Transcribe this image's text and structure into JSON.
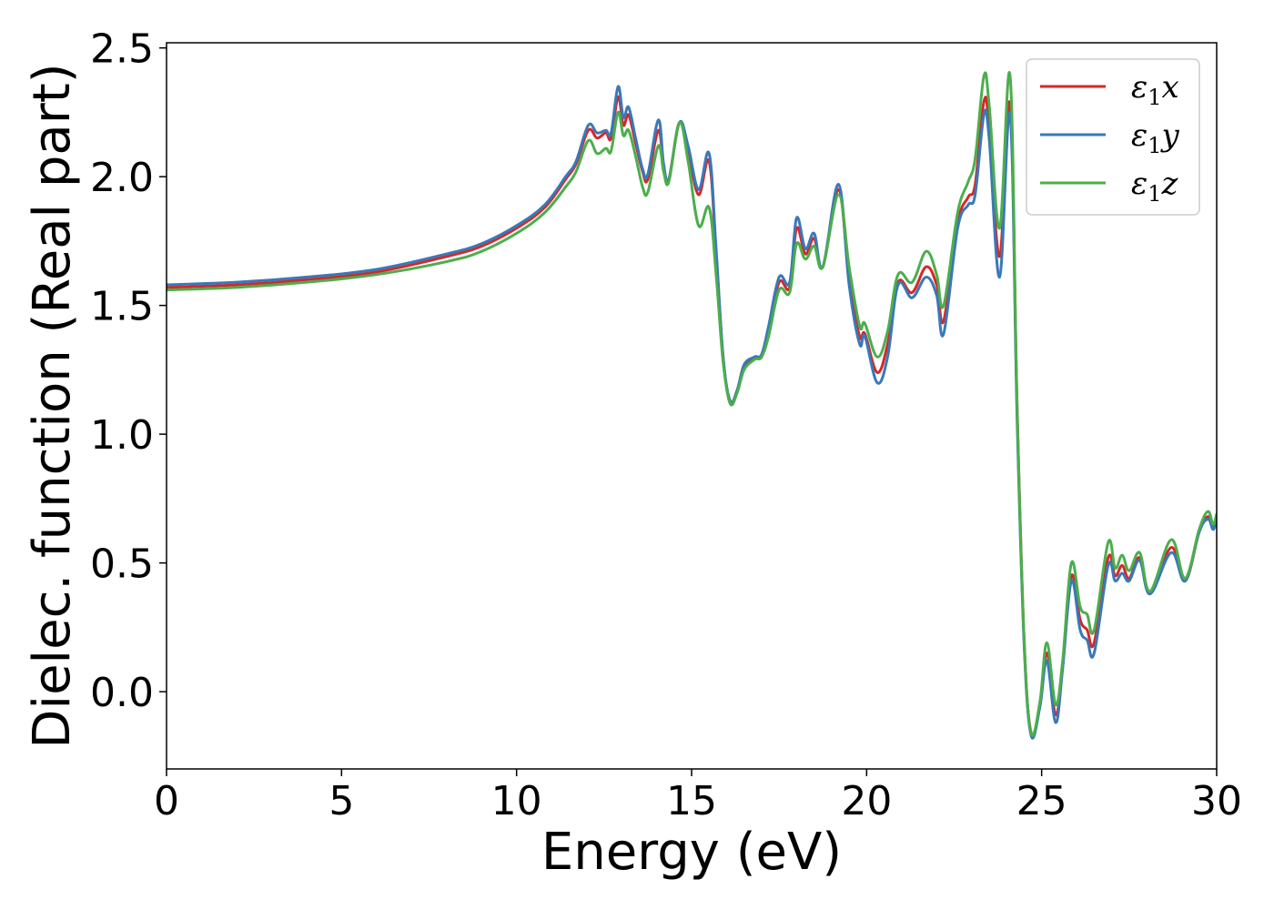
{
  "chart_data": {
    "type": "line",
    "title": "",
    "xlabel": "Energy (eV)",
    "ylabel": "Dielec. function (Real part)",
    "xlim": [
      0,
      30
    ],
    "ylim": [
      -0.3,
      2.52
    ],
    "xticks": [
      0,
      5,
      10,
      15,
      20,
      25,
      30
    ],
    "xtick_labels": [
      "0",
      "5",
      "10",
      "15",
      "20",
      "25",
      "30"
    ],
    "yticks": [
      0.0,
      0.5,
      1.0,
      1.5,
      2.0,
      2.5
    ],
    "ytick_labels": [
      "0.0",
      "0.5",
      "1.0",
      "1.5",
      "2.0",
      "2.5"
    ],
    "grid": false,
    "legend_position": "top-right",
    "series": [
      {
        "name": "ε1x",
        "legend_symbol": "ε",
        "legend_subscript": "1",
        "legend_suffix": "x",
        "color": "#d62728",
        "points": [
          [
            0,
            1.57
          ],
          [
            2,
            1.58
          ],
          [
            4,
            1.6
          ],
          [
            6,
            1.63
          ],
          [
            8,
            1.69
          ],
          [
            9,
            1.73
          ],
          [
            10,
            1.8
          ],
          [
            10.8,
            1.88
          ],
          [
            11.4,
            1.99
          ],
          [
            11.7,
            2.05
          ],
          [
            12.05,
            2.18
          ],
          [
            12.3,
            2.15
          ],
          [
            12.55,
            2.17
          ],
          [
            12.7,
            2.15
          ],
          [
            12.9,
            2.31
          ],
          [
            13.05,
            2.2
          ],
          [
            13.2,
            2.24
          ],
          [
            13.4,
            2.13
          ],
          [
            13.6,
            2.02
          ],
          [
            13.75,
            1.99
          ],
          [
            14.05,
            2.18
          ],
          [
            14.2,
            2.04
          ],
          [
            14.35,
            1.99
          ],
          [
            14.65,
            2.21
          ],
          [
            14.9,
            2.1
          ],
          [
            15.2,
            1.93
          ],
          [
            15.5,
            2.06
          ],
          [
            15.7,
            1.7
          ],
          [
            15.9,
            1.3
          ],
          [
            16.1,
            1.12
          ],
          [
            16.3,
            1.17
          ],
          [
            16.5,
            1.26
          ],
          [
            16.8,
            1.3
          ],
          [
            17.0,
            1.3
          ],
          [
            17.2,
            1.4
          ],
          [
            17.5,
            1.59
          ],
          [
            17.8,
            1.57
          ],
          [
            18.0,
            1.8
          ],
          [
            18.25,
            1.7
          ],
          [
            18.5,
            1.76
          ],
          [
            18.75,
            1.65
          ],
          [
            19.2,
            1.95
          ],
          [
            19.5,
            1.6
          ],
          [
            19.8,
            1.38
          ],
          [
            19.95,
            1.39
          ],
          [
            20.3,
            1.24
          ],
          [
            20.6,
            1.35
          ],
          [
            20.9,
            1.59
          ],
          [
            21.3,
            1.55
          ],
          [
            21.7,
            1.65
          ],
          [
            22.0,
            1.58
          ],
          [
            22.2,
            1.44
          ],
          [
            22.6,
            1.82
          ],
          [
            22.9,
            1.92
          ],
          [
            23.1,
            1.97
          ],
          [
            23.35,
            2.29
          ],
          [
            23.5,
            2.2
          ],
          [
            23.8,
            1.69
          ],
          [
            24.1,
            2.28
          ],
          [
            24.3,
            1.1
          ],
          [
            24.5,
            0.2
          ],
          [
            24.7,
            -0.16
          ],
          [
            24.95,
            -0.05
          ],
          [
            25.15,
            0.15
          ],
          [
            25.4,
            -0.09
          ],
          [
            25.6,
            0.1
          ],
          [
            25.85,
            0.45
          ],
          [
            26.1,
            0.28
          ],
          [
            26.3,
            0.24
          ],
          [
            26.5,
            0.19
          ],
          [
            26.9,
            0.52
          ],
          [
            27.1,
            0.45
          ],
          [
            27.3,
            0.49
          ],
          [
            27.5,
            0.44
          ],
          [
            27.8,
            0.52
          ],
          [
            28.1,
            0.38
          ],
          [
            28.7,
            0.56
          ],
          [
            29.1,
            0.43
          ],
          [
            29.5,
            0.62
          ],
          [
            29.75,
            0.68
          ],
          [
            29.9,
            0.64
          ],
          [
            30,
            0.68
          ]
        ]
      },
      {
        "name": "ε1y",
        "legend_symbol": "ε",
        "legend_subscript": "1",
        "legend_suffix": "y",
        "color": "#3a78b8",
        "points": [
          [
            0,
            1.58
          ],
          [
            2,
            1.59
          ],
          [
            4,
            1.61
          ],
          [
            6,
            1.64
          ],
          [
            8,
            1.7
          ],
          [
            9,
            1.74
          ],
          [
            10,
            1.81
          ],
          [
            10.8,
            1.89
          ],
          [
            11.4,
            2.0
          ],
          [
            11.7,
            2.06
          ],
          [
            12.05,
            2.2
          ],
          [
            12.3,
            2.17
          ],
          [
            12.55,
            2.18
          ],
          [
            12.7,
            2.17
          ],
          [
            12.9,
            2.35
          ],
          [
            13.05,
            2.23
          ],
          [
            13.2,
            2.27
          ],
          [
            13.4,
            2.15
          ],
          [
            13.6,
            2.03
          ],
          [
            13.75,
            2.01
          ],
          [
            14.05,
            2.22
          ],
          [
            14.2,
            2.05
          ],
          [
            14.35,
            1.99
          ],
          [
            14.65,
            2.21
          ],
          [
            14.9,
            2.12
          ],
          [
            15.2,
            1.95
          ],
          [
            15.5,
            2.09
          ],
          [
            15.7,
            1.72
          ],
          [
            15.9,
            1.3
          ],
          [
            16.1,
            1.13
          ],
          [
            16.3,
            1.17
          ],
          [
            16.5,
            1.27
          ],
          [
            16.8,
            1.3
          ],
          [
            17.0,
            1.31
          ],
          [
            17.2,
            1.42
          ],
          [
            17.5,
            1.61
          ],
          [
            17.8,
            1.59
          ],
          [
            18.0,
            1.84
          ],
          [
            18.25,
            1.72
          ],
          [
            18.5,
            1.78
          ],
          [
            18.75,
            1.65
          ],
          [
            19.2,
            1.97
          ],
          [
            19.5,
            1.58
          ],
          [
            19.8,
            1.35
          ],
          [
            19.95,
            1.38
          ],
          [
            20.3,
            1.2
          ],
          [
            20.6,
            1.3
          ],
          [
            20.9,
            1.58
          ],
          [
            21.3,
            1.53
          ],
          [
            21.7,
            1.61
          ],
          [
            22.0,
            1.54
          ],
          [
            22.2,
            1.39
          ],
          [
            22.6,
            1.8
          ],
          [
            22.9,
            1.89
          ],
          [
            23.1,
            1.93
          ],
          [
            23.35,
            2.24
          ],
          [
            23.5,
            2.15
          ],
          [
            23.8,
            1.61
          ],
          [
            24.1,
            2.24
          ],
          [
            24.3,
            1.05
          ],
          [
            24.5,
            0.18
          ],
          [
            24.7,
            -0.17
          ],
          [
            24.95,
            -0.06
          ],
          [
            25.15,
            0.12
          ],
          [
            25.4,
            -0.12
          ],
          [
            25.6,
            0.09
          ],
          [
            25.85,
            0.43
          ],
          [
            26.1,
            0.24
          ],
          [
            26.3,
            0.2
          ],
          [
            26.5,
            0.15
          ],
          [
            26.9,
            0.49
          ],
          [
            27.1,
            0.43
          ],
          [
            27.3,
            0.46
          ],
          [
            27.5,
            0.43
          ],
          [
            27.8,
            0.51
          ],
          [
            28.1,
            0.38
          ],
          [
            28.7,
            0.54
          ],
          [
            29.1,
            0.43
          ],
          [
            29.5,
            0.62
          ],
          [
            29.75,
            0.67
          ],
          [
            29.9,
            0.63
          ],
          [
            30,
            0.67
          ]
        ]
      },
      {
        "name": "ε1z",
        "legend_symbol": "ε",
        "legend_subscript": "1",
        "legend_suffix": "z",
        "color": "#4cae4c",
        "points": [
          [
            0,
            1.56
          ],
          [
            2,
            1.57
          ],
          [
            4,
            1.59
          ],
          [
            6,
            1.62
          ],
          [
            8,
            1.67
          ],
          [
            9,
            1.71
          ],
          [
            10,
            1.78
          ],
          [
            10.8,
            1.86
          ],
          [
            11.4,
            1.96
          ],
          [
            11.7,
            2.02
          ],
          [
            12.05,
            2.14
          ],
          [
            12.3,
            2.09
          ],
          [
            12.55,
            2.11
          ],
          [
            12.7,
            2.1
          ],
          [
            12.9,
            2.25
          ],
          [
            13.05,
            2.16
          ],
          [
            13.2,
            2.18
          ],
          [
            13.4,
            2.08
          ],
          [
            13.6,
            1.96
          ],
          [
            13.75,
            1.94
          ],
          [
            14.05,
            2.12
          ],
          [
            14.2,
            2.02
          ],
          [
            14.35,
            1.98
          ],
          [
            14.65,
            2.21
          ],
          [
            14.9,
            2.06
          ],
          [
            15.2,
            1.81
          ],
          [
            15.5,
            1.88
          ],
          [
            15.7,
            1.62
          ],
          [
            15.9,
            1.28
          ],
          [
            16.1,
            1.12
          ],
          [
            16.3,
            1.16
          ],
          [
            16.5,
            1.25
          ],
          [
            16.8,
            1.29
          ],
          [
            17.0,
            1.3
          ],
          [
            17.2,
            1.38
          ],
          [
            17.5,
            1.56
          ],
          [
            17.8,
            1.55
          ],
          [
            18.0,
            1.74
          ],
          [
            18.25,
            1.68
          ],
          [
            18.5,
            1.73
          ],
          [
            18.75,
            1.65
          ],
          [
            19.2,
            1.93
          ],
          [
            19.5,
            1.65
          ],
          [
            19.8,
            1.42
          ],
          [
            19.95,
            1.43
          ],
          [
            20.3,
            1.3
          ],
          [
            20.6,
            1.4
          ],
          [
            20.9,
            1.62
          ],
          [
            21.3,
            1.59
          ],
          [
            21.7,
            1.71
          ],
          [
            22.0,
            1.62
          ],
          [
            22.2,
            1.5
          ],
          [
            22.6,
            1.86
          ],
          [
            22.9,
            1.98
          ],
          [
            23.1,
            2.07
          ],
          [
            23.35,
            2.39
          ],
          [
            23.5,
            2.28
          ],
          [
            23.8,
            1.8
          ],
          [
            24.1,
            2.39
          ],
          [
            24.3,
            1.1
          ],
          [
            24.5,
            0.2
          ],
          [
            24.7,
            -0.16
          ],
          [
            24.95,
            -0.04
          ],
          [
            25.15,
            0.19
          ],
          [
            25.4,
            -0.05
          ],
          [
            25.6,
            0.12
          ],
          [
            25.85,
            0.5
          ],
          [
            26.1,
            0.33
          ],
          [
            26.3,
            0.3
          ],
          [
            26.5,
            0.24
          ],
          [
            26.9,
            0.58
          ],
          [
            27.1,
            0.48
          ],
          [
            27.3,
            0.53
          ],
          [
            27.5,
            0.47
          ],
          [
            27.8,
            0.54
          ],
          [
            28.1,
            0.39
          ],
          [
            28.7,
            0.59
          ],
          [
            29.1,
            0.44
          ],
          [
            29.5,
            0.63
          ],
          [
            29.75,
            0.7
          ],
          [
            29.9,
            0.65
          ],
          [
            30,
            0.69
          ]
        ]
      }
    ]
  }
}
